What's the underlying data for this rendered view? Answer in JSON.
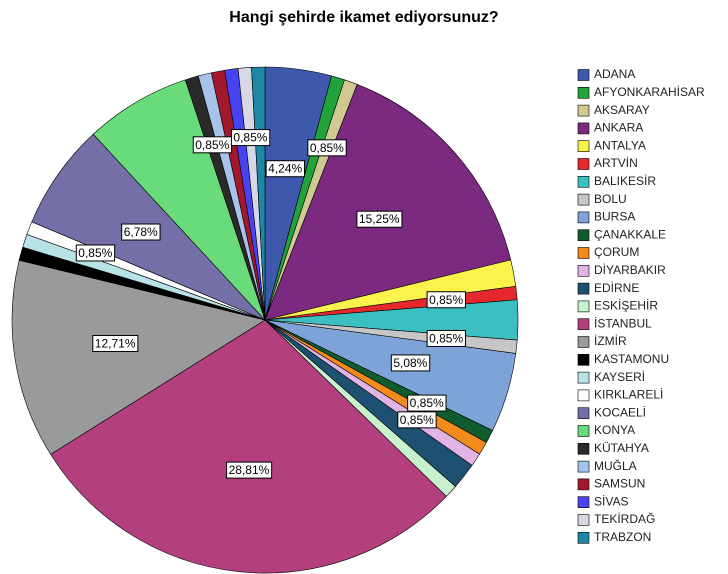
{
  "chart_data": {
    "type": "pie",
    "title": "Hangi şehirde ikamet ediyorsunuz?",
    "categories": [
      "ADANA",
      "AFYONKARAHİSAR",
      "AKSARAY",
      "ANKARA",
      "ANTALYA",
      "ARTVİN",
      "BALIKESİR",
      "BOLU",
      "BURSA",
      "ÇANAKKALE",
      "ÇORUM",
      "DİYARBAKIR",
      "EDİRNE",
      "ESKİŞEHİR",
      "İSTANBUL",
      "İZMİR",
      "KASTAMONU",
      "KAYSERİ",
      "KIRKLARELİ",
      "KOCAELİ",
      "KONYA",
      "KÜTAHYA",
      "MUĞLA",
      "SAMSUN",
      "SİVAS",
      "TEKİRDAĞ",
      "TRABZON"
    ],
    "values": [
      4.24,
      0.85,
      0.85,
      15.25,
      1.69,
      0.85,
      2.54,
      0.85,
      5.08,
      0.85,
      0.85,
      0.85,
      1.69,
      0.85,
      28.81,
      12.71,
      0.85,
      0.85,
      0.85,
      6.78,
      6.78,
      0.85,
      0.85,
      0.85,
      0.85,
      0.85,
      0.85
    ],
    "value_labels": [
      "4,24%",
      null,
      "0,85%",
      "15,25%",
      null,
      "0,85%",
      null,
      "0,85%",
      "5,08%",
      "0,85%",
      null,
      "0,85%",
      null,
      null,
      "28,81%",
      "12,71%",
      null,
      null,
      "0,85%",
      "6,78%",
      null,
      "0,85%",
      null,
      null,
      null,
      "0,85%",
      null
    ],
    "colors": [
      "#3e58ac",
      "#21a23b",
      "#d0c991",
      "#7b2a7f",
      "#f9f34c",
      "#e4282c",
      "#3cbfc0",
      "#c6c6c6",
      "#7ea3d8",
      "#0f5c2f",
      "#f28b1c",
      "#e2b4e6",
      "#1d5071",
      "#c6f1cc",
      "#b43f7e",
      "#9a9a9a",
      "#000000",
      "#b8e3e6",
      "#ffffff",
      "#7470a7",
      "#6adb7a",
      "#2a2a2a",
      "#a8c3ea",
      "#a3182d",
      "#4743f0",
      "#d6d8e5",
      "#1f87a5"
    ],
    "legend": "right"
  }
}
